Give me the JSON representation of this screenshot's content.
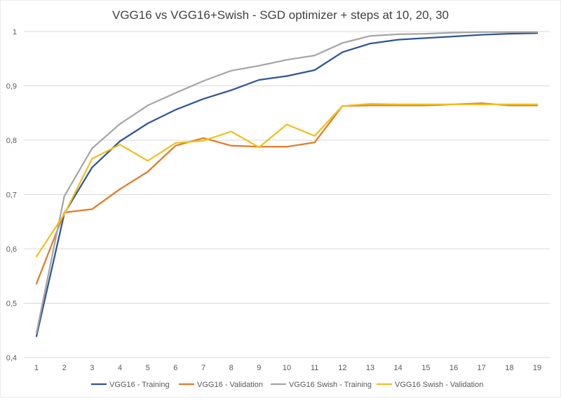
{
  "chart_data": {
    "type": "line",
    "title": "VGG16 vs VGG16+Swish - SGD optimizer + steps at 10, 20, 30",
    "xlabel": "",
    "ylabel": "",
    "x": [
      1,
      2,
      3,
      4,
      5,
      6,
      7,
      8,
      9,
      10,
      11,
      12,
      13,
      14,
      15,
      16,
      17,
      18,
      19
    ],
    "ylim": [
      0.4,
      1.0
    ],
    "yticks": [
      0.4,
      0.5,
      0.6,
      0.7,
      0.8,
      0.9,
      1.0
    ],
    "ytick_labels": [
      "0,4",
      "0,5",
      "0,6",
      "0,7",
      "0,8",
      "0,9",
      "1"
    ],
    "grid": true,
    "legend_position": "bottom",
    "series": [
      {
        "name": "VGG16 - Training",
        "color": "#2f5597",
        "values": [
          0.439,
          0.665,
          0.75,
          0.798,
          0.831,
          0.856,
          0.876,
          0.892,
          0.911,
          0.918,
          0.929,
          0.962,
          0.978,
          0.985,
          0.988,
          0.991,
          0.994,
          0.996,
          0.997
        ]
      },
      {
        "name": "VGG16 - Validation",
        "color": "#e07b28",
        "values": [
          0.536,
          0.667,
          0.673,
          0.71,
          0.742,
          0.79,
          0.804,
          0.79,
          0.788,
          0.788,
          0.796,
          0.863,
          0.864,
          0.864,
          0.864,
          0.866,
          0.868,
          0.864,
          0.864
        ]
      },
      {
        "name": "VGG16 Swish - Training",
        "color": "#a6a6a6",
        "values": [
          0.445,
          0.697,
          0.785,
          0.83,
          0.864,
          0.887,
          0.909,
          0.928,
          0.937,
          0.948,
          0.956,
          0.979,
          0.992,
          0.995,
          0.996,
          0.998,
          0.999,
          0.999,
          0.999
        ]
      },
      {
        "name": "VGG16 Swish - Validation",
        "color": "#f2bf1d",
        "values": [
          0.586,
          0.664,
          0.766,
          0.792,
          0.762,
          0.795,
          0.799,
          0.816,
          0.787,
          0.829,
          0.808,
          0.863,
          0.867,
          0.866,
          0.866,
          0.866,
          0.866,
          0.866,
          0.866
        ]
      }
    ]
  }
}
